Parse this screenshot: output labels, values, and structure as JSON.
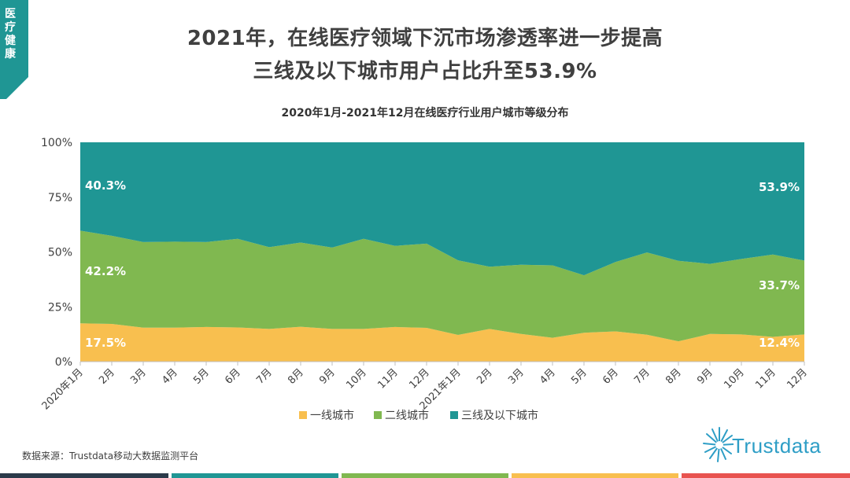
{
  "section_tag": {
    "label": "医疗健康"
  },
  "headline": {
    "line1": "2021年，在线医疗领域下沉市场渗透率进一步提高",
    "line2": "三线及以下城市用户占比升至53.9%"
  },
  "chart_data": {
    "type": "area",
    "stacked": true,
    "title": "2020年1月-2021年12月在线医疗行业用户城市等级分布",
    "categories": [
      "2020年1月",
      "2月",
      "3月",
      "4月",
      "5月",
      "6月",
      "7月",
      "8月",
      "9月",
      "10月",
      "11月",
      "12月",
      "2021年1月",
      "2月",
      "3月",
      "4月",
      "5月",
      "6月",
      "7月",
      "8月",
      "9月",
      "10月",
      "11月",
      "12月"
    ],
    "series": [
      {
        "name": "一线城市",
        "color": "#f8bf4f",
        "values": [
          17.5,
          17.2,
          15.5,
          15.5,
          15.8,
          15.6,
          14.9,
          15.9,
          14.9,
          14.9,
          15.8,
          15.4,
          12.2,
          14.9,
          12.6,
          10.9,
          13.2,
          13.8,
          12.3,
          9.3,
          12.6,
          12.4,
          11.3,
          12.4
        ]
      },
      {
        "name": "二线城市",
        "color": "#80b850",
        "values": [
          42.2,
          40.2,
          39.0,
          39.2,
          38.7,
          40.4,
          37.3,
          38.4,
          37.1,
          41.1,
          37.0,
          38.4,
          34.0,
          28.4,
          31.6,
          33.0,
          26.2,
          31.6,
          37.5,
          36.7,
          32.0,
          34.4,
          37.5,
          33.7
        ]
      },
      {
        "name": "三线及以下城市",
        "color": "#1f9694",
        "values": [
          40.3,
          42.6,
          45.5,
          45.3,
          45.5,
          44.0,
          47.8,
          45.7,
          48.0,
          44.0,
          47.2,
          46.2,
          53.8,
          56.7,
          55.8,
          56.1,
          60.6,
          54.6,
          50.2,
          54.0,
          55.4,
          53.2,
          51.2,
          53.9
        ]
      }
    ],
    "y_ticks": [
      "0%",
      "25%",
      "50%",
      "75%",
      "100%"
    ],
    "ylim": [
      0,
      100
    ],
    "annotations": {
      "start": [
        "17.5%",
        "42.2%",
        "40.3%"
      ],
      "end": [
        "12.4%",
        "33.7%",
        "53.9%"
      ]
    },
    "legend_position": "bottom"
  },
  "source_note": "数据来源：Trustdata移动大数据监测平台",
  "logo": {
    "text": "Trustdata"
  },
  "colors": {
    "accent": "#1f9694",
    "bottom_bar": [
      "#2b3a4a",
      "#1f9694",
      "#80b850",
      "#f8bf4f",
      "#e8534f"
    ]
  }
}
